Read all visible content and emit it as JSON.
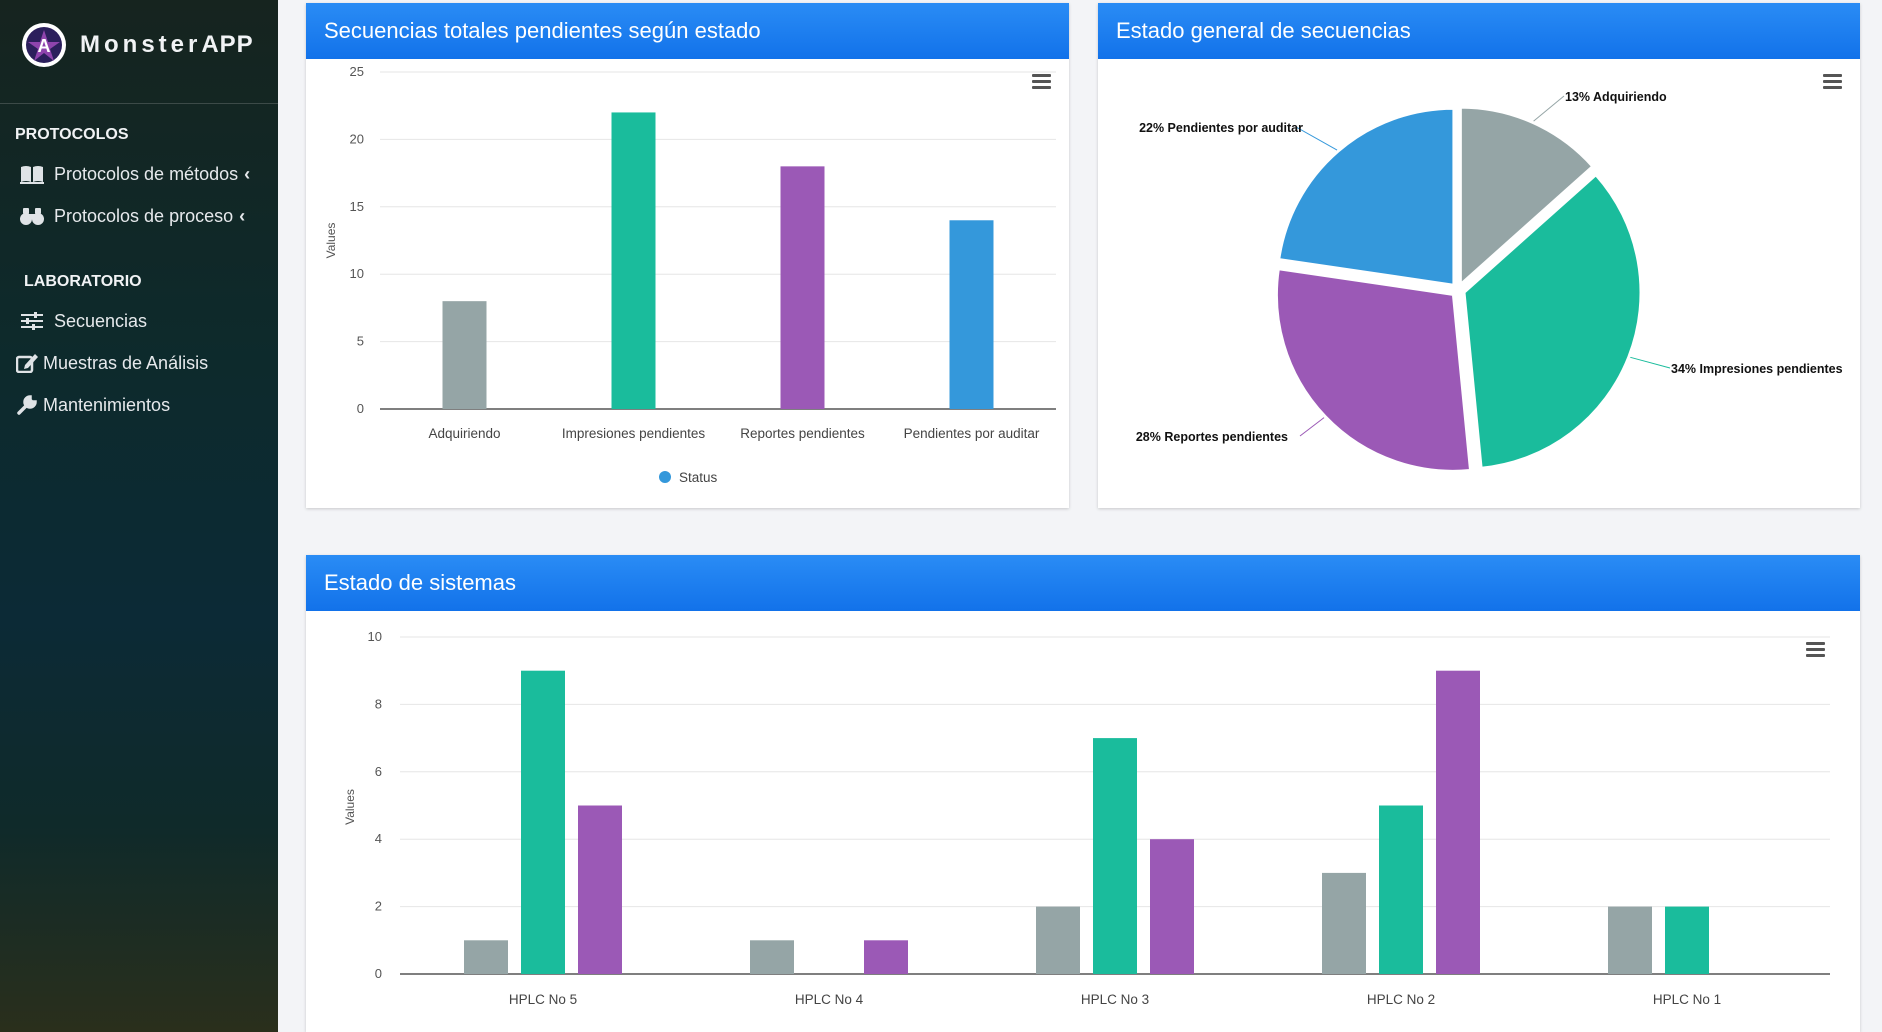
{
  "brand": {
    "name": "Monster",
    "suffix": "APP"
  },
  "colors": {
    "gray": "#95a5a6",
    "teal": "#1abc9c",
    "purple": "#9b59b6",
    "blue": "#3498db",
    "header": "#1a7ef0"
  },
  "sidebar": {
    "sections": [
      {
        "title": "PROTOCOLOS",
        "items": [
          {
            "label": "Protocolos de métodos",
            "icon": "book-icon",
            "chevron": "‹"
          },
          {
            "label": "Protocolos de proceso",
            "icon": "binoculars-icon",
            "chevron": "‹"
          }
        ]
      },
      {
        "title": "LABORATORIO",
        "items": [
          {
            "label": "Secuencias",
            "icon": "sliders-icon"
          },
          {
            "label": "Muestras de Análisis",
            "icon": "edit-icon"
          },
          {
            "label": "Mantenimientos",
            "icon": "wrench-icon"
          }
        ]
      }
    ]
  },
  "cards": {
    "bar_status": {
      "title": "Secuencias totales pendientes según estado"
    },
    "pie_status": {
      "title": "Estado general de secuencias"
    },
    "systems": {
      "title": "Estado de sistemas"
    }
  },
  "chart_data": [
    {
      "type": "bar",
      "title": "Secuencias totales pendientes según estado",
      "categories": [
        "Adquiriendo",
        "Impresiones pendientes",
        "Reportes pendientes",
        "Pendientes por auditar"
      ],
      "values": [
        8,
        22,
        18,
        14
      ],
      "colors": [
        "#95a5a6",
        "#1abc9c",
        "#9b59b6",
        "#3498db"
      ],
      "ylabel": "Values",
      "ylim": [
        0,
        25
      ],
      "yticks": [
        0,
        5,
        10,
        15,
        20,
        25
      ],
      "legend": {
        "label": "Status",
        "position": "bottom"
      },
      "grid": true
    },
    {
      "type": "pie",
      "title": "Estado general de secuencias",
      "slices": [
        {
          "label": "13% Adquiriendo",
          "value": 13,
          "color": "#95a5a6"
        },
        {
          "label": "34% Impresiones pendientes",
          "value": 34,
          "color": "#1abc9c"
        },
        {
          "label": "28% Reportes pendientes",
          "value": 28,
          "color": "#9b59b6"
        },
        {
          "label": "22% Pendientes por auditar",
          "value": 22,
          "color": "#3498db"
        }
      ]
    },
    {
      "type": "bar",
      "title": "Estado de sistemas",
      "categories": [
        "HPLC No 5",
        "HPLC No 4",
        "HPLC No 3",
        "HPLC No 2",
        "HPLC No 1"
      ],
      "series": [
        {
          "values": [
            1,
            1,
            2,
            3,
            2
          ],
          "color": "#95a5a6"
        },
        {
          "values": [
            9,
            0,
            7,
            5,
            2
          ],
          "color": "#1abc9c"
        },
        {
          "values": [
            5,
            1,
            4,
            9,
            0
          ],
          "color": "#9b59b6"
        }
      ],
      "ylabel": "Values",
      "ylim": [
        0,
        10
      ],
      "yticks": [
        0,
        2,
        4,
        6,
        8,
        10
      ],
      "grid": true
    }
  ]
}
